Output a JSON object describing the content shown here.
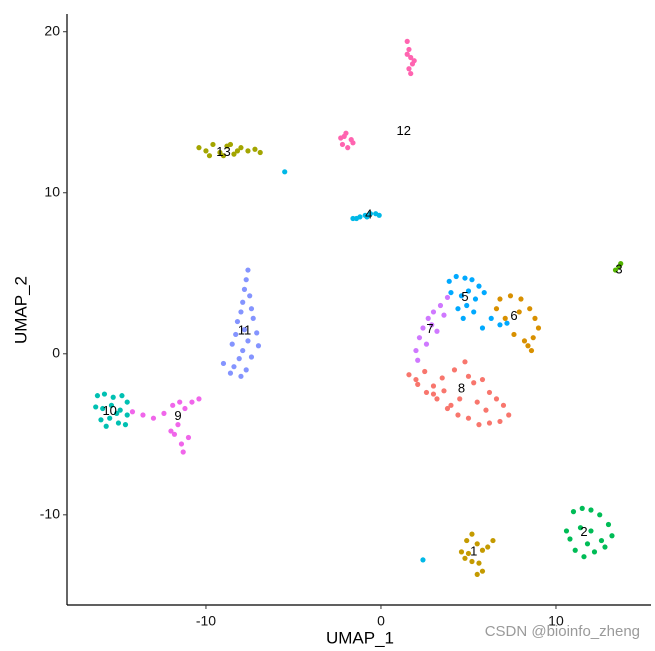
{
  "chart_data": {
    "type": "scatter",
    "x_label": "UMAP_1",
    "y_label": "UMAP_2",
    "xlim": [
      -17.94,
      15.43
    ],
    "ylim": [
      -15.6,
      21.1
    ],
    "xticks": [
      -10,
      0,
      10
    ],
    "yticks": [
      -10,
      0,
      10,
      20
    ],
    "grid": false,
    "series": [
      {
        "color": "#F8766D",
        "x": [
          1.6,
          2.0,
          2.5,
          3.0,
          3.6,
          4.2,
          4.8,
          5.3,
          5.8,
          6.2,
          6.6,
          7.0,
          7.3,
          6.8,
          6.2,
          5.6,
          5.0,
          4.4,
          3.8,
          3.2,
          2.6,
          2.1,
          3.5,
          4.5,
          5.5,
          4.0,
          5.0,
          6.0,
          3.0
        ],
        "y": [
          -1.3,
          -1.6,
          -1.1,
          -2.0,
          -2.3,
          -1.0,
          -0.5,
          -1.8,
          -1.6,
          -2.4,
          -2.8,
          -3.2,
          -3.8,
          -4.2,
          -4.3,
          -4.4,
          -4.0,
          -3.8,
          -3.4,
          -2.8,
          -2.4,
          -1.9,
          -1.5,
          -2.8,
          -3.0,
          -3.2,
          -1.4,
          -3.5,
          -2.5
        ]
      },
      {
        "color": "#D89000",
        "x": [
          6.8,
          7.4,
          8.0,
          8.5,
          8.8,
          9.0,
          8.7,
          8.2,
          7.6,
          7.1,
          6.6,
          8.4,
          8.6,
          7.9
        ],
        "y": [
          3.4,
          3.6,
          3.4,
          2.8,
          2.2,
          1.6,
          1.0,
          0.8,
          1.2,
          2.2,
          2.8,
          0.5,
          0.2,
          2.6
        ]
      },
      {
        "color": "#C49A00",
        "x": [
          4.6,
          4.9,
          5.2,
          5.5,
          5.8,
          6.1,
          6.4,
          4.8,
          5.2,
          5.0,
          5.6,
          5.8,
          5.5
        ],
        "y": [
          -12.3,
          -11.6,
          -11.2,
          -11.8,
          -12.2,
          -12.0,
          -11.6,
          -12.7,
          -12.9,
          -12.4,
          -13.0,
          -13.5,
          -13.7
        ]
      },
      {
        "color": "#A3A500",
        "x": [
          -10.4,
          -10.0,
          -9.6,
          -9.2,
          -8.8,
          -8.4,
          -8.0,
          -7.6,
          -7.2,
          -6.9,
          -9.8,
          -9.0,
          -8.2,
          -8.6
        ],
        "y": [
          12.8,
          12.6,
          13.0,
          12.5,
          12.9,
          12.4,
          12.8,
          12.6,
          12.7,
          12.5,
          12.3,
          12.3,
          12.6,
          13.0
        ]
      },
      {
        "color": "#53B400",
        "x": [
          13.4,
          13.6,
          13.7
        ],
        "y": [
          5.2,
          5.4,
          5.6
        ]
      },
      {
        "color": "#00BC56",
        "x": [
          10.6,
          11.0,
          11.5,
          12.0,
          12.5,
          13.0,
          13.2,
          12.8,
          12.2,
          11.6,
          11.1,
          10.8,
          11.4,
          12.0,
          12.6,
          11.8
        ],
        "y": [
          -11.0,
          -9.8,
          -9.6,
          -9.7,
          -10.0,
          -10.6,
          -11.3,
          -12.0,
          -12.3,
          -12.6,
          -12.2,
          -11.5,
          -10.8,
          -11.0,
          -11.6,
          -11.8
        ]
      },
      {
        "color": "#00C0B2",
        "x": [
          -16.2,
          -15.8,
          -15.3,
          -14.8,
          -14.5,
          -16.3,
          -15.9,
          -15.4,
          -14.9,
          -14.5,
          -16.0,
          -15.5,
          -15.0,
          -14.6,
          -15.7,
          -15.1
        ],
        "y": [
          -2.6,
          -2.5,
          -2.7,
          -2.6,
          -3.0,
          -3.3,
          -3.4,
          -3.2,
          -3.5,
          -3.8,
          -4.1,
          -4.0,
          -4.3,
          -4.4,
          -4.5,
          -3.7
        ]
      },
      {
        "color": "#00B8E7",
        "x": [
          -1.6,
          -1.2,
          -0.9,
          -0.6,
          -0.3,
          -0.1,
          -1.4,
          -0.8,
          -5.5,
          2.4
        ],
        "y": [
          8.4,
          8.5,
          8.6,
          8.7,
          8.7,
          8.6,
          8.4,
          8.5,
          11.3,
          -12.8
        ]
      },
      {
        "color": "#00A9FF",
        "x": [
          3.9,
          4.3,
          4.8,
          5.2,
          5.6,
          4.0,
          4.6,
          5.0,
          5.4,
          5.9,
          4.4,
          4.9,
          5.3,
          6.3,
          6.8,
          7.2,
          5.8,
          4.7
        ],
        "y": [
          4.5,
          4.8,
          4.7,
          4.6,
          4.2,
          3.8,
          3.6,
          3.9,
          3.4,
          3.8,
          2.8,
          3.0,
          2.6,
          2.2,
          1.8,
          1.9,
          1.6,
          2.2
        ]
      },
      {
        "color": "#8494FF",
        "x": [
          -7.6,
          -7.7,
          -7.8,
          -7.5,
          -7.9,
          -8.0,
          -7.4,
          -8.2,
          -7.3,
          -7.8,
          -8.3,
          -7.1,
          -7.6,
          -8.5,
          -7.0,
          -7.9,
          -8.1,
          -7.4,
          -8.4,
          -8.6,
          -7.7,
          -8.0,
          -9.0
        ],
        "y": [
          5.2,
          4.6,
          4.0,
          3.6,
          3.2,
          2.6,
          2.8,
          2.0,
          2.2,
          1.5,
          1.2,
          1.3,
          0.8,
          0.6,
          0.5,
          0.2,
          -0.3,
          -0.2,
          -0.8,
          -1.2,
          -1.0,
          -1.4,
          -0.6
        ]
      },
      {
        "color": "#CF78FF",
        "x": [
          3.8,
          3.4,
          3.0,
          2.7,
          2.4,
          2.2,
          2.0,
          2.6,
          3.2,
          3.6,
          2.9,
          2.1
        ],
        "y": [
          3.5,
          3.0,
          2.6,
          2.2,
          1.6,
          1.0,
          0.2,
          0.6,
          1.4,
          2.4,
          1.8,
          -0.4
        ]
      },
      {
        "color": "#F066EA",
        "x": [
          -14.2,
          -13.6,
          -13.0,
          -12.4,
          -11.9,
          -11.5,
          -11.2,
          -10.8,
          -10.4,
          -11.6,
          -11.8,
          -11.4,
          -12.0,
          -11.3,
          -11.0
        ],
        "y": [
          -3.6,
          -3.8,
          -4.0,
          -3.7,
          -3.2,
          -3.0,
          -3.4,
          -3.0,
          -2.8,
          -4.4,
          -5.0,
          -5.6,
          -4.8,
          -6.1,
          -5.2
        ]
      },
      {
        "color": "#FF64B0",
        "x": [
          1.5,
          1.6,
          1.7,
          1.8,
          1.6,
          1.7,
          1.9,
          1.5,
          -2.3,
          -2.0,
          -1.7,
          -2.2,
          -1.9,
          -1.6,
          -2.1
        ],
        "y": [
          19.4,
          18.9,
          18.4,
          18.0,
          17.7,
          17.4,
          18.2,
          18.6,
          13.4,
          13.7,
          13.3,
          13.0,
          12.8,
          13.1,
          13.5
        ]
      }
    ],
    "annotations": [
      {
        "text": "1",
        "x": 5.3,
        "y": -12.3
      },
      {
        "text": "2",
        "x": 11.6,
        "y": -11.1
      },
      {
        "text": "3",
        "x": 13.6,
        "y": 5.2
      },
      {
        "text": "4",
        "x": -0.7,
        "y": 8.6
      },
      {
        "text": "5",
        "x": 4.8,
        "y": 3.5
      },
      {
        "text": "6",
        "x": 7.6,
        "y": 2.3
      },
      {
        "text": "7",
        "x": 2.8,
        "y": 1.5
      },
      {
        "text": "8",
        "x": 4.6,
        "y": -2.2
      },
      {
        "text": "9",
        "x": -11.6,
        "y": -3.9
      },
      {
        "text": "10",
        "x": -15.5,
        "y": -3.6
      },
      {
        "text": "11",
        "x": -7.8,
        "y": 1.4
      },
      {
        "text": "12",
        "x": 1.3,
        "y": 13.8
      },
      {
        "text": "13",
        "x": -9.0,
        "y": 12.5
      }
    ],
    "watermark": "CSDN @bioinfo_zheng"
  }
}
